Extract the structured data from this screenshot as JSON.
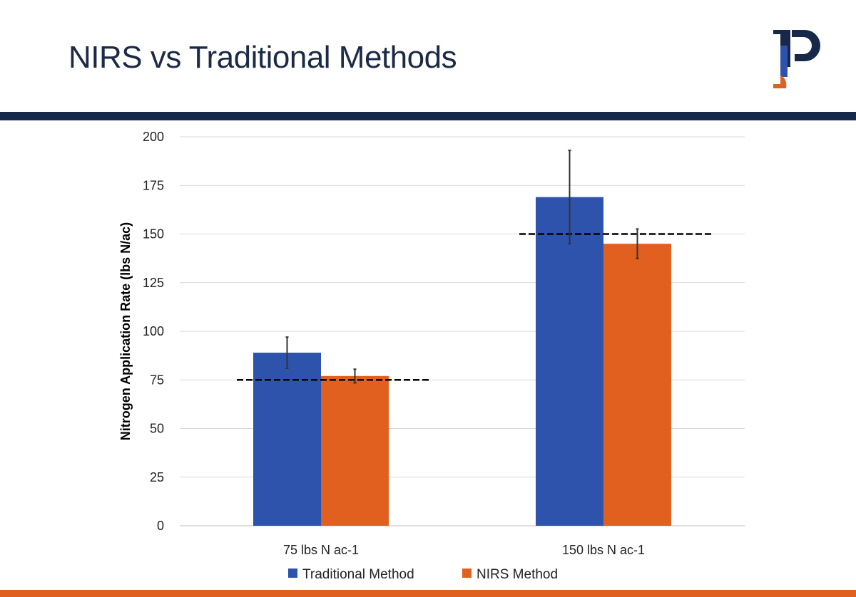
{
  "slide": {
    "title": "NIRS vs Traditional Methods",
    "logo_text": "P"
  },
  "colors": {
    "navy": "#17284a",
    "orange_band": "#e0611f",
    "traditional": "#2e53ad",
    "nirs": "#e15f1f"
  },
  "chart_data": {
    "type": "bar",
    "categories": [
      "75 lbs N ac-1",
      "150 lbs N ac-1"
    ],
    "series": [
      {
        "name": "Traditional Method",
        "values": [
          89,
          169
        ],
        "error": [
          8,
          24
        ],
        "color": "#2e53ad"
      },
      {
        "name": "NIRS Method",
        "values": [
          77,
          145
        ],
        "error": [
          3.5,
          7.6
        ],
        "color": "#e15f1f"
      }
    ],
    "reference_lines": [
      75,
      150
    ],
    "xlabel": "",
    "ylabel": "Nitrogen Application Rate (lbs N/ac)",
    "ylim": [
      0,
      200
    ],
    "yticks": [
      0,
      25,
      50,
      75,
      100,
      125,
      150,
      175,
      200
    ],
    "grid": true,
    "legend": "bottom"
  }
}
